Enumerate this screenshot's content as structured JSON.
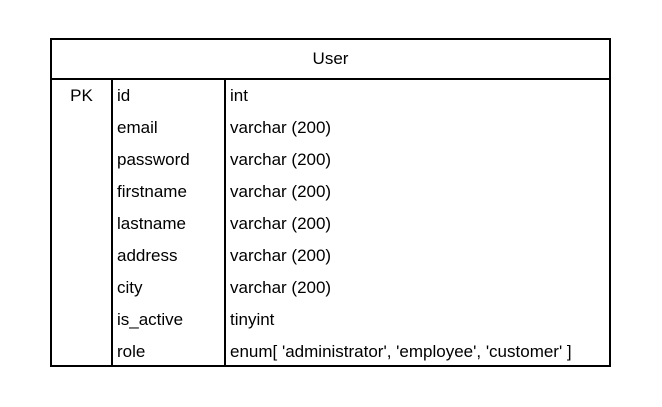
{
  "entity": {
    "title": "User",
    "rows": [
      {
        "key": "PK",
        "name": "id",
        "type": "int"
      },
      {
        "key": "",
        "name": "email",
        "type": "varchar (200)"
      },
      {
        "key": "",
        "name": "password",
        "type": "varchar (200)"
      },
      {
        "key": "",
        "name": "firstname",
        "type": "varchar (200)"
      },
      {
        "key": "",
        "name": "lastname",
        "type": "varchar (200)"
      },
      {
        "key": "",
        "name": "address",
        "type": "varchar (200)"
      },
      {
        "key": "",
        "name": "city",
        "type": "varchar (200)"
      },
      {
        "key": "",
        "name": "is_active",
        "type": "tinyint"
      },
      {
        "key": "",
        "name": "role",
        "type": "enum[ 'administrator', 'employee', 'customer' ]"
      }
    ]
  },
  "colors": {
    "border": "#000000",
    "background": "#ffffff",
    "text": "#000000"
  }
}
